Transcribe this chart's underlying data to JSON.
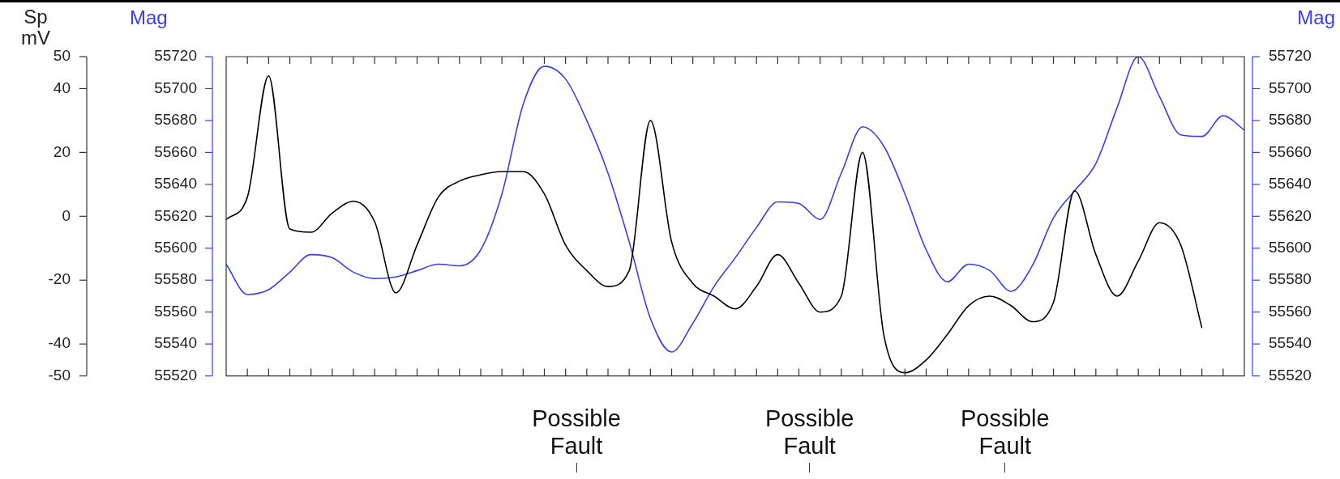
{
  "chart_data": {
    "type": "line",
    "ylabel": "Mag",
    "y2label": "Sp\nmV",
    "y3label": "Mag",
    "marker": "none",
    "line_style": "solid",
    "categories": [
      null,
      null,
      null,
      null,
      null,
      null,
      null,
      null,
      null,
      null,
      null,
      null,
      null,
      null,
      null,
      null,
      null,
      null,
      null,
      null,
      null,
      null,
      null,
      null,
      null,
      null,
      null,
      null,
      null,
      null,
      null,
      null,
      null,
      null,
      null,
      null,
      null,
      null,
      null,
      null,
      null,
      null,
      null,
      null,
      null,
      null,
      null,
      null,
      null
    ],
    "series": [
      {
        "color": "#000000",
        "axis": "y2",
        "values": [
          -1,
          6,
          44,
          -4,
          -5,
          1,
          4.7,
          -1.7,
          -24,
          -9,
          6,
          11,
          13,
          14,
          14,
          7,
          -9,
          -17,
          -22,
          -17,
          30,
          -8,
          -21,
          -25,
          -29,
          -22,
          -12,
          -21,
          -30,
          -25,
          20,
          -37,
          -49,
          -45,
          -37,
          -28,
          -25,
          -28,
          -33,
          -27,
          8,
          -12,
          -25,
          -14,
          -2,
          -9,
          -35,
          null,
          null
        ]
      },
      {
        "color": "#3c3cf0",
        "values": [
          55590,
          55571,
          55574,
          55585,
          55596,
          55594,
          55585,
          55581,
          55582,
          55586,
          55590,
          55589,
          55599,
          55634,
          55690,
          55714,
          55706,
          55680,
          55647,
          55604,
          55556,
          55535,
          55553,
          55576,
          55594,
          55613,
          55629,
          55628,
          55618,
          55647,
          55676,
          55664,
          55634,
          55599,
          55579,
          55590,
          55586,
          55573,
          55589,
          55619,
          55636,
          55653,
          55688,
          55720,
          55695,
          55671,
          55670,
          55683,
          55674
        ]
      }
    ],
    "ylim": [
      55520,
      55720
    ],
    "yticks": [
      55520,
      55540,
      55560,
      55580,
      55600,
      55620,
      55640,
      55660,
      55680,
      55700,
      55720
    ],
    "y2lim": [
      -50,
      50
    ],
    "y2ticks": [
      -50,
      -40,
      -20,
      0,
      20,
      40,
      50
    ],
    "y3lim": [
      55520,
      55720
    ],
    "y3ticks": [
      55520,
      55540,
      55560,
      55580,
      55600,
      55620,
      55640,
      55660,
      55680,
      55700,
      55720
    ],
    "annotations": [
      "Possible Fault",
      "Possible Fault",
      "Possible Fault"
    ]
  }
}
